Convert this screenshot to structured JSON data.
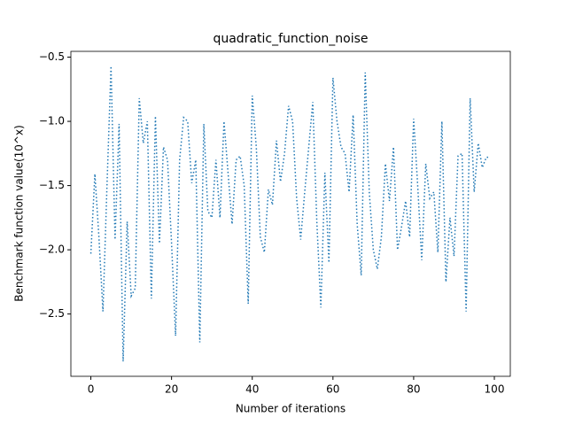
{
  "chart_data": {
    "type": "line",
    "title": "quadratic_function_noise",
    "x_label": "Number of iterations",
    "y_label": "Benchmark function value(10^x)",
    "x": [
      0,
      1,
      2,
      3,
      4,
      5,
      6,
      7,
      8,
      9,
      10,
      11,
      12,
      13,
      14,
      15,
      16,
      17,
      18,
      19,
      20,
      21,
      22,
      23,
      24,
      25,
      26,
      27,
      28,
      29,
      30,
      31,
      32,
      33,
      34,
      35,
      36,
      37,
      38,
      39,
      40,
      41,
      42,
      43,
      44,
      45,
      46,
      47,
      48,
      49,
      50,
      51,
      52,
      53,
      54,
      55,
      56,
      57,
      58,
      59,
      60,
      61,
      62,
      63,
      64,
      65,
      66,
      67,
      68,
      69,
      70,
      71,
      72,
      73,
      74,
      75,
      76,
      77,
      78,
      79,
      80,
      81,
      82,
      83,
      84,
      85,
      86,
      87,
      88,
      89,
      90,
      91,
      92,
      93,
      94,
      95,
      96,
      97,
      98,
      99
    ],
    "series": [
      {
        "name": "quadratic_function_noise",
        "color": "#1f77b4",
        "values": [
          -2.03,
          -1.41,
          -1.9,
          -2.48,
          -1.5,
          -0.57,
          -1.92,
          -1.02,
          -2.87,
          -1.78,
          -2.36,
          -2.3,
          -0.82,
          -1.17,
          -1.0,
          -2.38,
          -0.96,
          -1.95,
          -1.2,
          -1.3,
          -1.95,
          -2.67,
          -1.3,
          -0.97,
          -1.0,
          -1.48,
          -1.3,
          -2.72,
          -1.02,
          -1.7,
          -1.75,
          -1.3,
          -1.75,
          -1.0,
          -1.4,
          -1.8,
          -1.3,
          -1.27,
          -1.5,
          -2.42,
          -0.8,
          -1.2,
          -1.9,
          -2.02,
          -1.53,
          -1.65,
          -1.15,
          -1.47,
          -1.25,
          -0.88,
          -1.0,
          -1.6,
          -1.92,
          -1.55,
          -1.2,
          -0.85,
          -1.78,
          -2.45,
          -1.4,
          -2.1,
          -0.66,
          -1.0,
          -1.2,
          -1.25,
          -1.55,
          -0.95,
          -1.8,
          -2.2,
          -0.62,
          -1.55,
          -2.0,
          -2.15,
          -1.9,
          -1.33,
          -1.62,
          -1.2,
          -2.0,
          -1.82,
          -1.62,
          -1.9,
          -0.98,
          -1.5,
          -2.08,
          -1.33,
          -1.6,
          -1.55,
          -2.02,
          -1.0,
          -2.25,
          -1.75,
          -2.05,
          -1.27,
          -1.25,
          -2.48,
          -0.82,
          -1.55,
          -1.17,
          -1.36,
          -1.28,
          -1.28
        ]
      }
    ],
    "xlim": [
      -4.95,
      103.95
    ],
    "ylim": [
      -2.985,
      -0.455
    ],
    "xticks": [
      0,
      20,
      40,
      60,
      80,
      100
    ],
    "yticks": [
      {
        "value": -2.5,
        "label": "−2.5"
      },
      {
        "value": -2.0,
        "label": "−2.0"
      },
      {
        "value": -1.5,
        "label": "−1.5"
      },
      {
        "value": -1.0,
        "label": "−1.0"
      },
      {
        "value": -0.5,
        "label": "−0.5"
      }
    ],
    "grid": false
  }
}
